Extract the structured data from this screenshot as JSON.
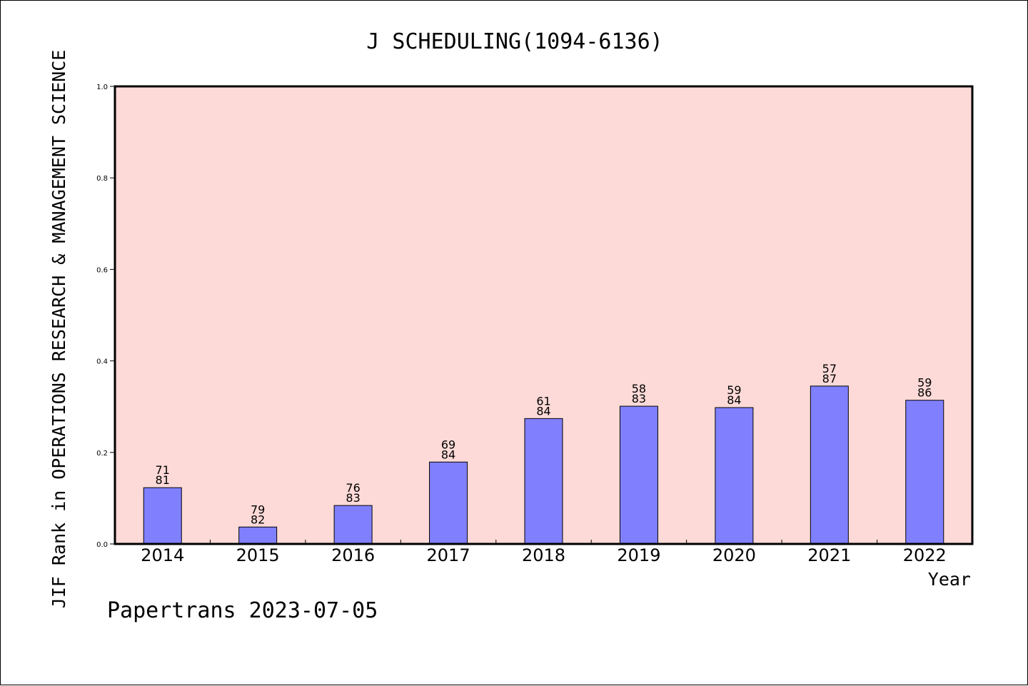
{
  "footer": "Papertrans 2023-07-05",
  "colors": {
    "plot_background": "#fddad7",
    "bar_fill": "#8080ff",
    "bar_stroke": "#000000"
  },
  "chart_data": {
    "type": "bar",
    "title": "J SCHEDULING(1094-6136)",
    "xlabel": "Year",
    "ylabel": "JIF Rank in OPERATIONS RESEARCH & MANAGEMENT SCIENCE",
    "ylim": [
      0,
      1.0
    ],
    "yticks": [
      "0.0",
      "0.2",
      "0.4",
      "0.6",
      "0.8",
      "1.0"
    ],
    "grid": false,
    "categories": [
      "2014",
      "2015",
      "2016",
      "2017",
      "2018",
      "2019",
      "2020",
      "2021",
      "2022"
    ],
    "values": [
      0.123,
      0.037,
      0.084,
      0.179,
      0.274,
      0.301,
      0.298,
      0.345,
      0.314
    ],
    "rank": [
      "71",
      "79",
      "76",
      "69",
      "61",
      "58",
      "59",
      "57",
      "59"
    ],
    "total": [
      "81",
      "82",
      "83",
      "84",
      "84",
      "83",
      "84",
      "87",
      "86"
    ]
  }
}
